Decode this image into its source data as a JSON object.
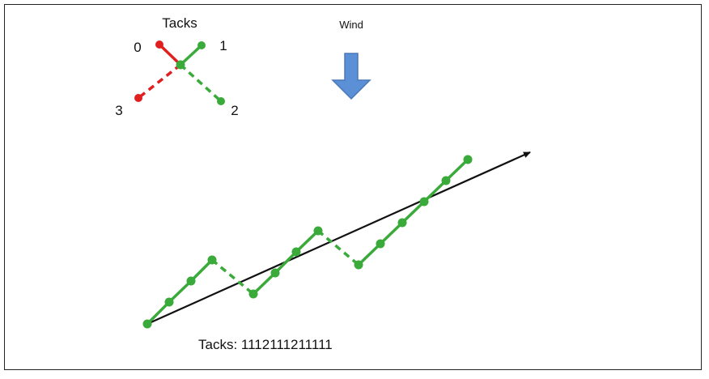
{
  "legend": {
    "title": "Tacks",
    "tack_labels": [
      "0",
      "1",
      "2",
      "3"
    ]
  },
  "wind": {
    "label": "Wind",
    "arrow_color": "#5b8fd6"
  },
  "caption": "Tacks: 1112111211111",
  "colors": {
    "tack_up": "#3aaa3a",
    "tack_down": "#e02020",
    "course_arrow": "#111111"
  }
}
